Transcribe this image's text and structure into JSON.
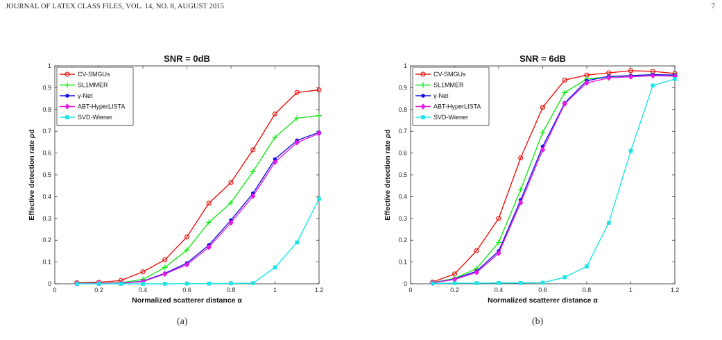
{
  "header": {
    "left": "JOURNAL OF LATEX CLASS FILES, VOL. 14, NO. 8, AUGUST 2015",
    "page_number": "7"
  },
  "captions": [
    "(a)",
    "(b)"
  ],
  "colors": {
    "CV-SMGUs": "#e8130f",
    "SL1MMER": "#19e619",
    "gamma-Net": "#1010e0",
    "ABT-HyperLISTA": "#e61ae6",
    "SVD-Wiener": "#19e6e6"
  },
  "chart_data": [
    {
      "type": "line",
      "title": "SNR = 0dB",
      "xlabel": "Normalized scatterer distance α",
      "ylabel": "Effective detection rate ρd",
      "xlim": [
        0,
        1.2
      ],
      "ylim": [
        0,
        1
      ],
      "xticks": [
        "0",
        "0.2",
        "0.4",
        "0.6",
        "0.8",
        "1",
        "1.2"
      ],
      "yticks": [
        "0",
        "0.1",
        "0.2",
        "0.3",
        "0.4",
        "0.5",
        "0.6",
        "0.7",
        "0.8",
        "0.9",
        "1"
      ],
      "grid": false,
      "legend_position": "top-left",
      "x": [
        0.1,
        0.2,
        0.3,
        0.4,
        0.5,
        0.6,
        0.7,
        0.8,
        0.9,
        1.0,
        1.1,
        1.2
      ],
      "series": [
        {
          "name": "CV-SMGUs",
          "marker": "circle",
          "values": [
            0.005,
            0.007,
            0.015,
            0.055,
            0.11,
            0.215,
            0.37,
            0.465,
            0.615,
            0.78,
            0.878,
            0.89
          ]
        },
        {
          "name": "SL1MMER",
          "marker": "plus",
          "values": [
            0.002,
            0.003,
            0.005,
            0.02,
            0.075,
            0.155,
            0.282,
            0.372,
            0.515,
            0.672,
            0.76,
            0.772
          ]
        },
        {
          "name": "γ-Net",
          "marker": "dot",
          "values": [
            0.001,
            0.002,
            0.003,
            0.012,
            0.048,
            0.095,
            0.178,
            0.292,
            0.415,
            0.572,
            0.658,
            0.695
          ]
        },
        {
          "name": "ABT-HyperLISTA",
          "marker": "diamond",
          "values": [
            0.001,
            0.002,
            0.003,
            0.01,
            0.045,
            0.088,
            0.168,
            0.28,
            0.402,
            0.558,
            0.648,
            0.69
          ]
        },
        {
          "name": "SVD-Wiener",
          "marker": "square",
          "values": [
            0.0,
            0.0,
            0.0,
            0.0,
            0.0,
            0.001,
            0.001,
            0.002,
            0.003,
            0.075,
            0.19,
            0.39
          ]
        }
      ]
    },
    {
      "type": "line",
      "title": "SNR = 6dB",
      "xlabel": "Normalized scatterer distance α",
      "ylabel": "Effective detection rate ρd",
      "xlim": [
        0,
        1.2
      ],
      "ylim": [
        0,
        1
      ],
      "xticks": [
        "0",
        "0.2",
        "0.4",
        "0.6",
        "0.8",
        "1",
        "1.2"
      ],
      "yticks": [
        "0",
        "0.1",
        "0.2",
        "0.3",
        "0.4",
        "0.5",
        "0.6",
        "0.7",
        "0.8",
        "0.9",
        "1"
      ],
      "grid": false,
      "legend_position": "top-left",
      "x": [
        0.1,
        0.2,
        0.3,
        0.4,
        0.5,
        0.6,
        0.7,
        0.8,
        0.9,
        1.0,
        1.1,
        1.2
      ],
      "series": [
        {
          "name": "CV-SMGUs",
          "marker": "circle",
          "values": [
            0.008,
            0.045,
            0.152,
            0.3,
            0.578,
            0.81,
            0.935,
            0.958,
            0.968,
            0.978,
            0.975,
            0.965
          ]
        },
        {
          "name": "SL1MMER",
          "marker": "plus",
          "values": [
            0.005,
            0.025,
            0.07,
            0.19,
            0.432,
            0.695,
            0.878,
            0.94,
            0.95,
            0.955,
            0.96,
            0.958
          ]
        },
        {
          "name": "γ-Net",
          "marker": "dot",
          "values": [
            0.004,
            0.022,
            0.058,
            0.15,
            0.385,
            0.63,
            0.83,
            0.932,
            0.952,
            0.955,
            0.96,
            0.958
          ]
        },
        {
          "name": "ABT-HyperLISTA",
          "marker": "diamond",
          "values": [
            0.004,
            0.02,
            0.052,
            0.14,
            0.372,
            0.615,
            0.826,
            0.922,
            0.945,
            0.95,
            0.955,
            0.953
          ]
        },
        {
          "name": "SVD-Wiener",
          "marker": "square",
          "values": [
            0.002,
            0.003,
            0.003,
            0.004,
            0.004,
            0.005,
            0.03,
            0.08,
            0.28,
            0.61,
            0.91,
            0.94
          ]
        }
      ]
    }
  ]
}
